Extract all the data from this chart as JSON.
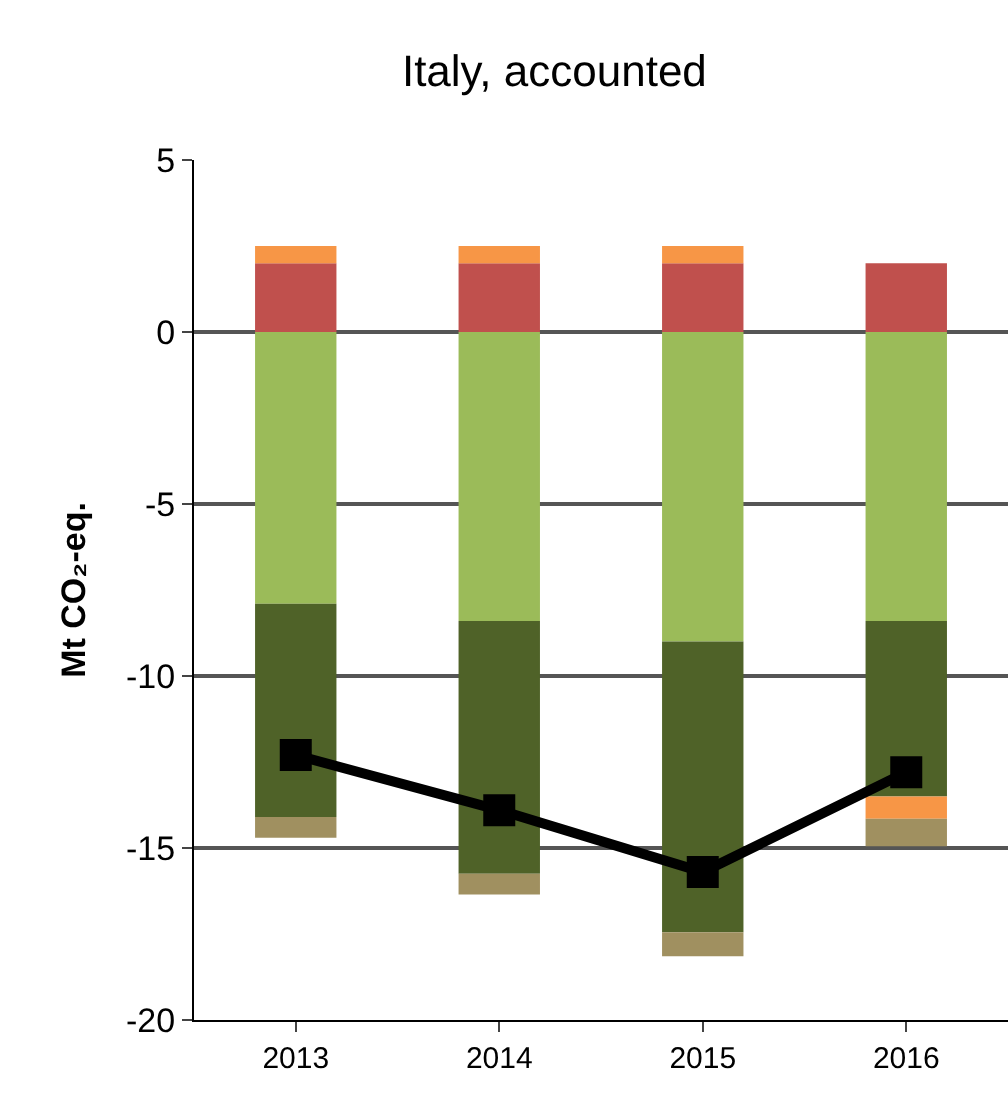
{
  "chart_data": {
    "type": "bar",
    "title": "Italy, accounted",
    "ylabel": "Mt CO₂-eq.",
    "categories": [
      "2013",
      "2014",
      "2015",
      "2016"
    ],
    "stacked": true,
    "series": [
      {
        "color": "#c0504d",
        "values": [
          2.0,
          2.0,
          2.0,
          2.0
        ]
      },
      {
        "color": "#9bbb59",
        "values": [
          -7.9,
          -8.4,
          -9.0,
          -8.4
        ]
      },
      {
        "color": "#4f6228",
        "values": [
          -6.2,
          -7.35,
          -8.45,
          -5.1
        ]
      },
      {
        "color": "#f79646",
        "values": [
          0.5,
          0.5,
          0.5,
          -0.65
        ]
      },
      {
        "color": "#a09060",
        "values": [
          -0.6,
          -0.6,
          -0.7,
          -0.8
        ]
      },
      {
        "type": "line",
        "color": "#000000",
        "marker": "square",
        "line_style": "solid",
        "values": [
          -12.3,
          -13.9,
          -15.7,
          -12.8
        ]
      }
    ],
    "ylim": [
      -20,
      5
    ],
    "yticks": [
      -20,
      -15,
      -10,
      -5,
      0,
      5
    ],
    "grid": "y"
  }
}
